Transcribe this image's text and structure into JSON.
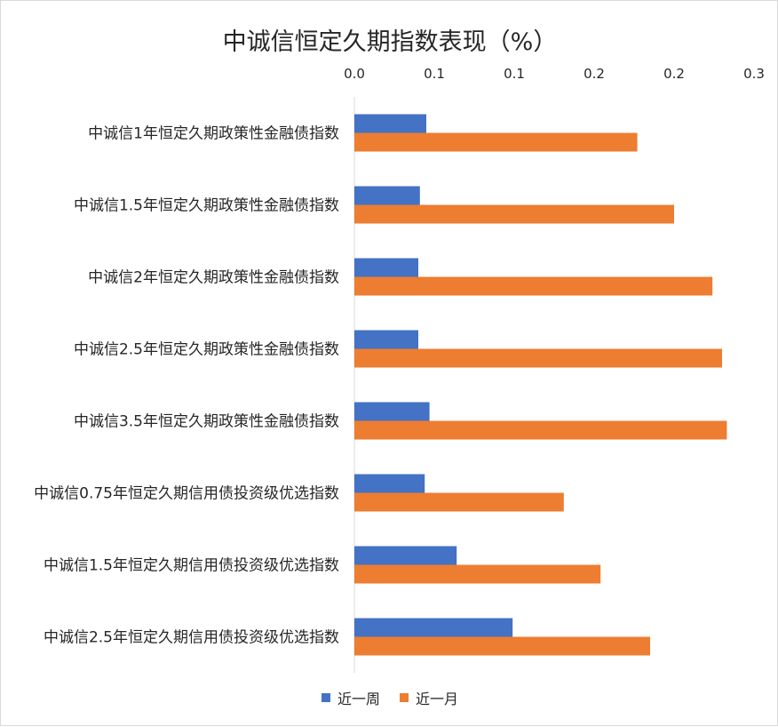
{
  "chart_data": {
    "type": "bar",
    "orientation": "horizontal",
    "title": "中诚信恒定久期指数表现（%）",
    "xlabel": "",
    "ylabel": "",
    "xlim": [
      0,
      0.3
    ],
    "x_ticks": [
      0,
      0.05,
      0.1,
      0.15,
      0.2,
      0.25
    ],
    "x_tick_labels": [
      "0.0",
      "0.1",
      "0.1",
      "0.2",
      "0.2",
      "0.3"
    ],
    "axis_position": "top",
    "grid": false,
    "legend_position": "bottom",
    "categories": [
      "中诚信1年恒定久期政策性金融债指数",
      "中诚信1.5年恒定久期政策性金融债指数",
      "中诚信2年恒定久期政策性金融债指数",
      "中诚信2.5年恒定久期政策性金融债指数",
      "中诚信3.5年恒定久期政策性金融债指数",
      "中诚信0.75年恒定久期信用债投资级优选指数",
      "中诚信1.5年恒定久期信用债投资级优选指数",
      "中诚信2.5年恒定久期信用债投资级优选指数"
    ],
    "series": [
      {
        "name": "近一周",
        "color": "#4472c4",
        "values": [
          0.045,
          0.041,
          0.04,
          0.04,
          0.047,
          0.044,
          0.064,
          0.099
        ]
      },
      {
        "name": "近一月",
        "color": "#ed7d31",
        "values": [
          0.177,
          0.2,
          0.224,
          0.23,
          0.233,
          0.131,
          0.154,
          0.185
        ]
      }
    ]
  }
}
